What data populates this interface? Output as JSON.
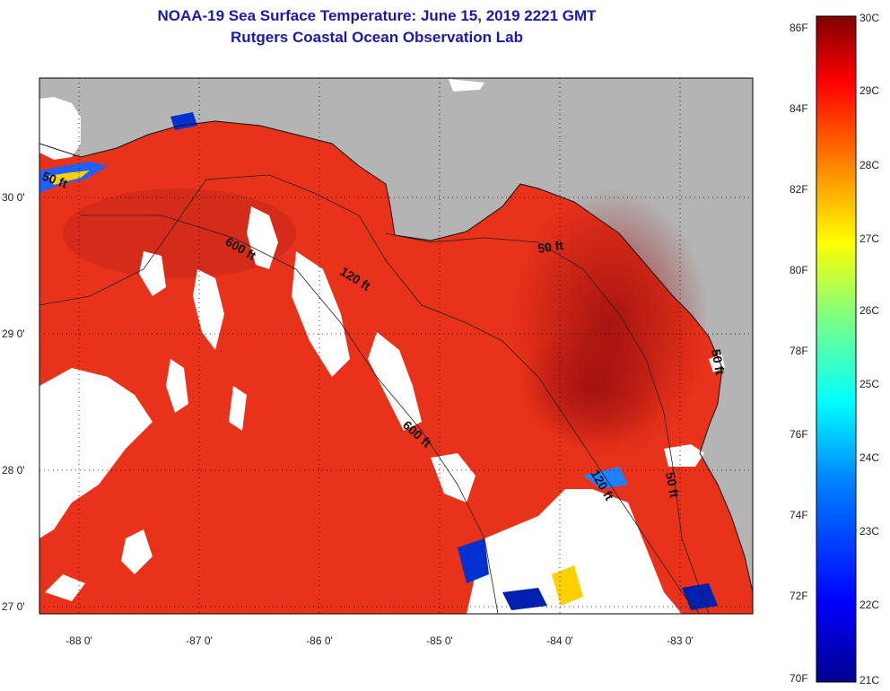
{
  "title": {
    "line1": "NOAA-19 Sea Surface Temperature:  June 15, 2019 2221 GMT",
    "line2": "Rutgers Coastal Ocean Observation Lab"
  },
  "lat_ticks": [
    "30 0'",
    "29 0'",
    "28 0'",
    "27 0'"
  ],
  "lon_ticks": [
    "-88 0'",
    "-87 0'",
    "-86 0'",
    "-85 0'",
    "-84 0'",
    "-83 0'"
  ],
  "depth_contours": [
    {
      "id": "d50-west",
      "text": "50 ft"
    },
    {
      "id": "d600-a",
      "text": "600 ft"
    },
    {
      "id": "d120-a",
      "text": "120 ft"
    },
    {
      "id": "d50-big-bend",
      "text": "50 ft"
    },
    {
      "id": "d600-b",
      "text": "600 ft"
    },
    {
      "id": "d120-b",
      "text": "120 ft"
    },
    {
      "id": "d50-south",
      "text": "50 ft"
    },
    {
      "id": "d50-coast",
      "text": "50 ft"
    }
  ],
  "colorbar": {
    "fahrenheit": [
      "86F",
      "84F",
      "82F",
      "80F",
      "78F",
      "76F",
      "74F",
      "72F",
      "70F"
    ],
    "celsius": [
      "30C",
      "29C",
      "28C",
      "27C",
      "26C",
      "25C",
      "24C",
      "23C",
      "22C",
      "21C"
    ],
    "colors": [
      "#00008f",
      "#0000ff",
      "#0080ff",
      "#00ffff",
      "#80ff80",
      "#ffff00",
      "#ff8000",
      "#ff0000",
      "#800000"
    ]
  },
  "colors": {
    "land": "#b4b4b4",
    "clouds": "#ffffff",
    "sst_main": "#e8321a",
    "sst_warm": "#c41e12",
    "sst_hot": "#a01010",
    "title": "#1a1aa8"
  }
}
